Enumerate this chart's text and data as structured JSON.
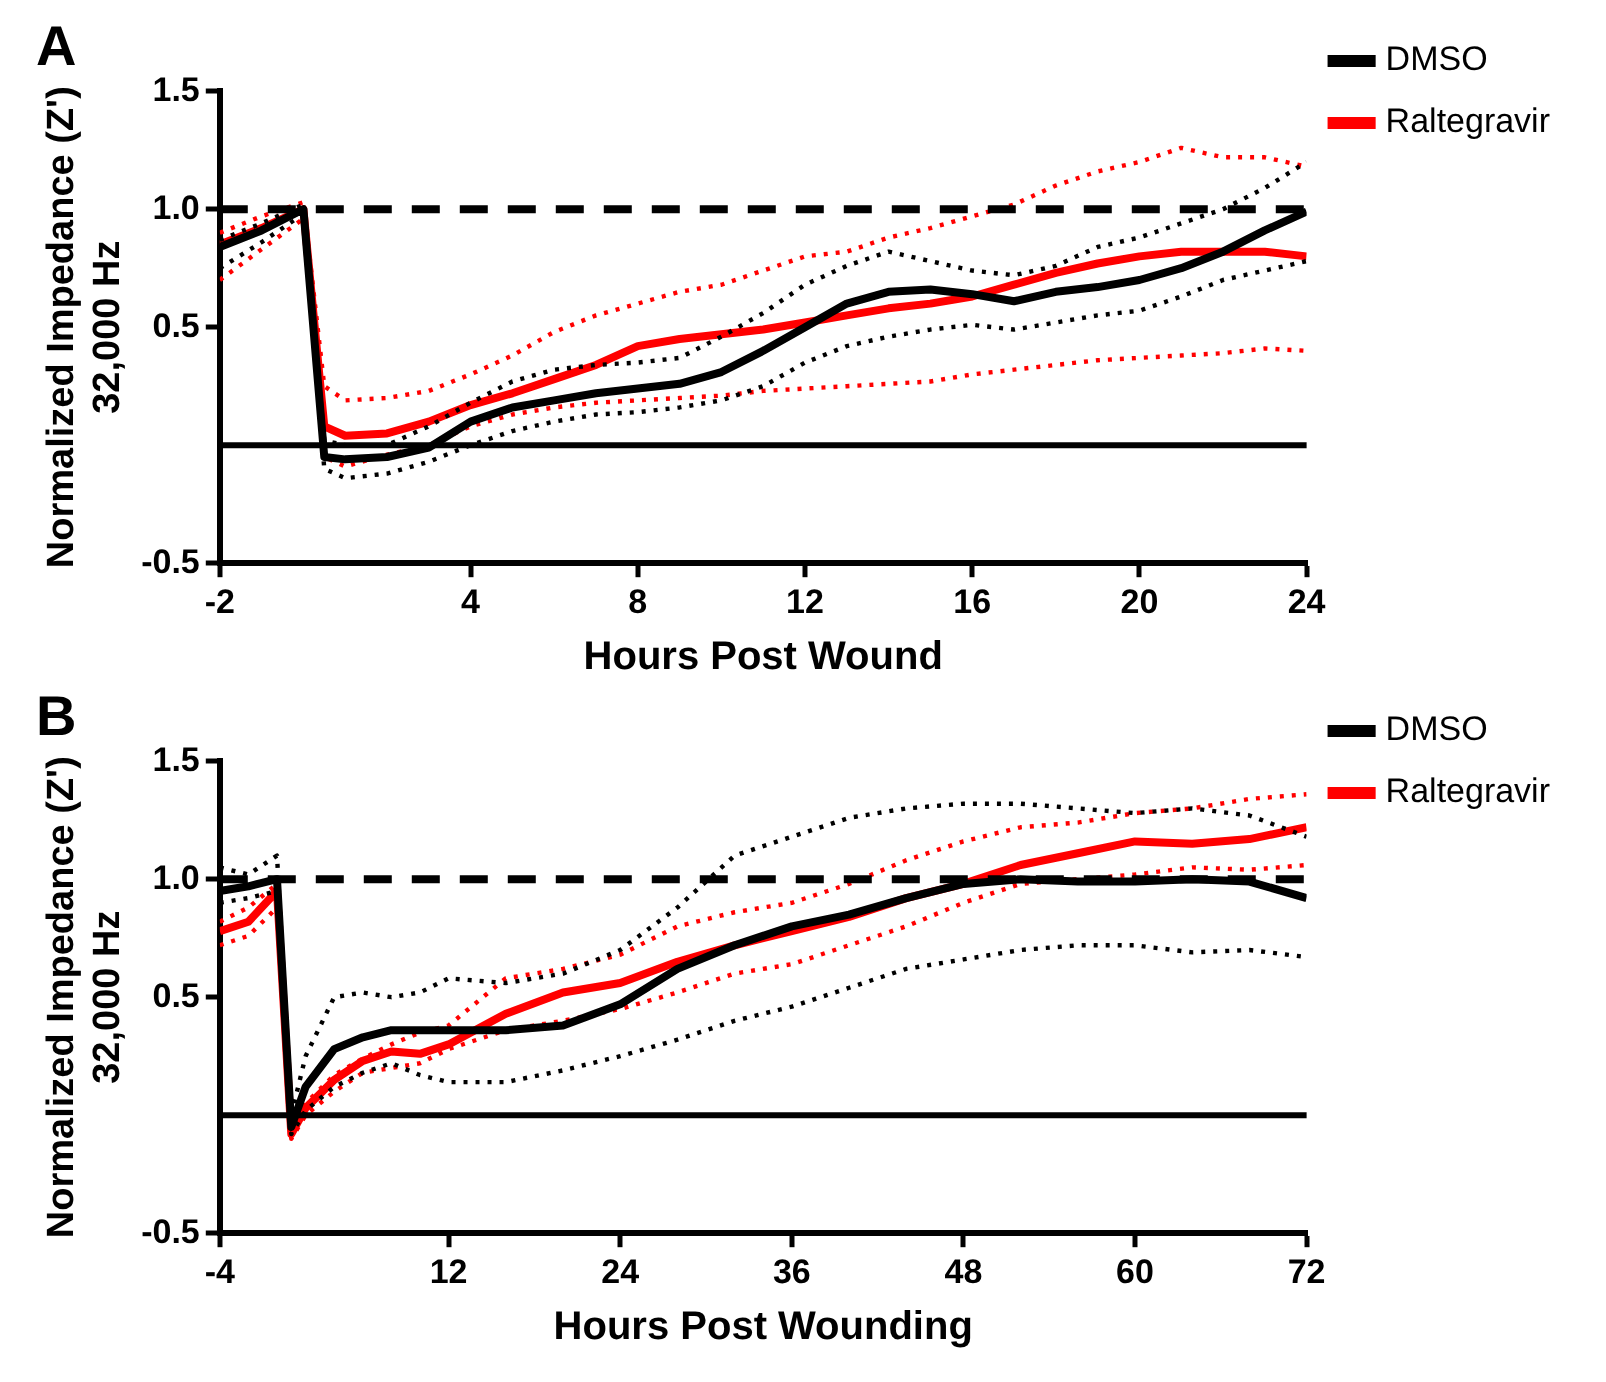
{
  "chart_data": [
    {
      "type": "line",
      "title": "A",
      "xlabel": "Hours Post Wound",
      "ylabel": "Normalized Impedance (Z')\n32,000 Hz",
      "legend": "right",
      "grid": false,
      "marker": "none",
      "line_style": "solid",
      "x": [
        -2,
        -1,
        0,
        0.5,
        1,
        2,
        3,
        4,
        5,
        6,
        7,
        8,
        9,
        10,
        11,
        12,
        13,
        14,
        15,
        16,
        17,
        18,
        19,
        20,
        21,
        22,
        23,
        24
      ],
      "xlim": [
        -2,
        24
      ],
      "xticks": [
        -2,
        4,
        8,
        12,
        16,
        20,
        24
      ],
      "ylim": [
        -0.5,
        1.5
      ],
      "yticks": [
        -0.5,
        0.5,
        {
          "value": 1,
          "label": "1.0"
        },
        1.5
      ],
      "ref_lines": [
        {
          "axis": "y",
          "value": 1,
          "color": "#000000",
          "line_style": "dashed"
        },
        {
          "axis": "y",
          "value": 0,
          "color": "#000000",
          "line_style": "solid"
        }
      ],
      "series": [
        {
          "name": "DMSO",
          "color": "#000000",
          "values": [
            0.84,
            0.91,
            1.0,
            -0.05,
            -0.06,
            -0.05,
            -0.01,
            0.1,
            0.16,
            0.19,
            0.22,
            0.24,
            0.26,
            0.31,
            0.4,
            0.5,
            0.6,
            0.65,
            0.66,
            0.64,
            0.61,
            0.65,
            0.67,
            0.7,
            0.75,
            0.82,
            0.91,
            0.99
          ]
        },
        {
          "color": "#000000",
          "line_style": "dotted",
          "values": [
            0.75,
            0.86,
            0.98,
            -0.1,
            -0.14,
            -0.12,
            -0.07,
            0.0,
            0.06,
            0.1,
            0.13,
            0.14,
            0.16,
            0.19,
            0.25,
            0.35,
            0.42,
            0.46,
            0.49,
            0.51,
            0.49,
            0.52,
            0.55,
            0.57,
            0.63,
            0.7,
            0.74,
            0.78
          ]
        },
        {
          "color": "#000000",
          "line_style": "dotted",
          "values": [
            0.87,
            0.94,
            1.02,
            0.02,
            0.0,
            0.0,
            0.08,
            0.18,
            0.27,
            0.32,
            0.34,
            0.35,
            0.37,
            0.46,
            0.56,
            0.68,
            0.76,
            0.82,
            0.78,
            0.74,
            0.72,
            0.76,
            0.84,
            0.88,
            0.94,
            1.0,
            1.09,
            1.2
          ]
        },
        {
          "name": "Raltegravir",
          "color": "#ff0000",
          "values": [
            0.85,
            0.92,
            1.0,
            0.08,
            0.04,
            0.05,
            0.1,
            0.17,
            0.22,
            0.28,
            0.34,
            0.42,
            0.45,
            0.47,
            0.49,
            0.52,
            0.55,
            0.58,
            0.6,
            0.63,
            0.68,
            0.73,
            0.77,
            0.8,
            0.82,
            0.82,
            0.82,
            0.8
          ]
        },
        {
          "color": "#ff0000",
          "line_style": "dotted",
          "values": [
            0.7,
            0.83,
            0.96,
            -0.05,
            -0.09,
            -0.04,
            0.0,
            0.08,
            0.13,
            0.16,
            0.18,
            0.19,
            0.2,
            0.21,
            0.23,
            0.24,
            0.25,
            0.26,
            0.27,
            0.3,
            0.32,
            0.34,
            0.36,
            0.37,
            0.38,
            0.39,
            0.41,
            0.4
          ]
        },
        {
          "color": "#ff0000",
          "line_style": "dotted",
          "values": [
            0.9,
            0.97,
            1.03,
            0.25,
            0.19,
            0.2,
            0.23,
            0.3,
            0.38,
            0.48,
            0.55,
            0.6,
            0.65,
            0.68,
            0.74,
            0.8,
            0.82,
            0.88,
            0.92,
            0.97,
            1.02,
            1.1,
            1.16,
            1.2,
            1.26,
            1.22,
            1.22,
            1.18
          ]
        }
      ]
    },
    {
      "type": "line",
      "title": "B",
      "xlabel": "Hours Post Wounding",
      "ylabel": "Normalized Impedance (Z')\n32,000 Hz",
      "legend": "right",
      "grid": false,
      "marker": "none",
      "line_style": "solid",
      "x": [
        -4,
        -2,
        0,
        1,
        2,
        4,
        6,
        8,
        10,
        12,
        16,
        20,
        24,
        28,
        32,
        36,
        40,
        44,
        48,
        52,
        56,
        60,
        64,
        68,
        72
      ],
      "xlim": [
        -4,
        72
      ],
      "xticks": [
        -4,
        12,
        24,
        36,
        48,
        60,
        72
      ],
      "ylim": [
        -0.5,
        1.5
      ],
      "yticks": [
        -0.5,
        0.5,
        {
          "value": 1,
          "label": "1.0"
        },
        1.5
      ],
      "ref_lines": [
        {
          "axis": "y",
          "value": 1,
          "color": "#000000",
          "line_style": "dashed"
        },
        {
          "axis": "y",
          "value": 0,
          "color": "#000000",
          "line_style": "solid"
        }
      ],
      "series": [
        {
          "name": "DMSO",
          "color": "#000000",
          "values": [
            0.95,
            0.97,
            1.0,
            -0.05,
            0.12,
            0.28,
            0.33,
            0.36,
            0.36,
            0.36,
            0.36,
            0.38,
            0.47,
            0.62,
            0.72,
            0.8,
            0.85,
            0.92,
            0.98,
            1.0,
            0.99,
            0.99,
            1.0,
            0.99,
            0.92
          ]
        },
        {
          "color": "#000000",
          "line_style": "dotted",
          "values": [
            0.9,
            0.92,
            0.95,
            -0.08,
            0.02,
            0.12,
            0.18,
            0.22,
            0.17,
            0.14,
            0.14,
            0.19,
            0.25,
            0.32,
            0.4,
            0.46,
            0.54,
            0.62,
            0.66,
            0.7,
            0.72,
            0.72,
            0.69,
            0.7,
            0.67
          ]
        },
        {
          "color": "#000000",
          "line_style": "dotted",
          "values": [
            1.05,
            1.02,
            1.1,
            0.0,
            0.25,
            0.5,
            0.52,
            0.5,
            0.52,
            0.58,
            0.56,
            0.6,
            0.7,
            0.88,
            1.1,
            1.18,
            1.26,
            1.3,
            1.32,
            1.32,
            1.3,
            1.28,
            1.3,
            1.27,
            1.18
          ]
        },
        {
          "name": "Raltegravir",
          "color": "#ff0000",
          "values": [
            0.78,
            0.82,
            0.95,
            -0.08,
            0.03,
            0.15,
            0.23,
            0.27,
            0.26,
            0.3,
            0.43,
            0.52,
            0.56,
            0.65,
            0.72,
            0.78,
            0.84,
            0.92,
            0.98,
            1.06,
            1.11,
            1.16,
            1.15,
            1.17,
            1.22
          ]
        },
        {
          "color": "#ff0000",
          "line_style": "dotted",
          "values": [
            0.72,
            0.76,
            0.88,
            -0.1,
            0.0,
            0.1,
            0.18,
            0.2,
            0.22,
            0.28,
            0.36,
            0.4,
            0.45,
            0.52,
            0.6,
            0.64,
            0.72,
            0.8,
            0.9,
            0.98,
            1.0,
            1.02,
            1.05,
            1.04,
            1.06
          ]
        },
        {
          "color": "#ff0000",
          "line_style": "dotted",
          "values": [
            0.82,
            0.88,
            0.98,
            -0.05,
            0.05,
            0.17,
            0.24,
            0.3,
            0.35,
            0.38,
            0.58,
            0.62,
            0.68,
            0.8,
            0.86,
            0.9,
            0.98,
            1.08,
            1.16,
            1.22,
            1.24,
            1.28,
            1.3,
            1.34,
            1.36
          ]
        }
      ]
    }
  ]
}
